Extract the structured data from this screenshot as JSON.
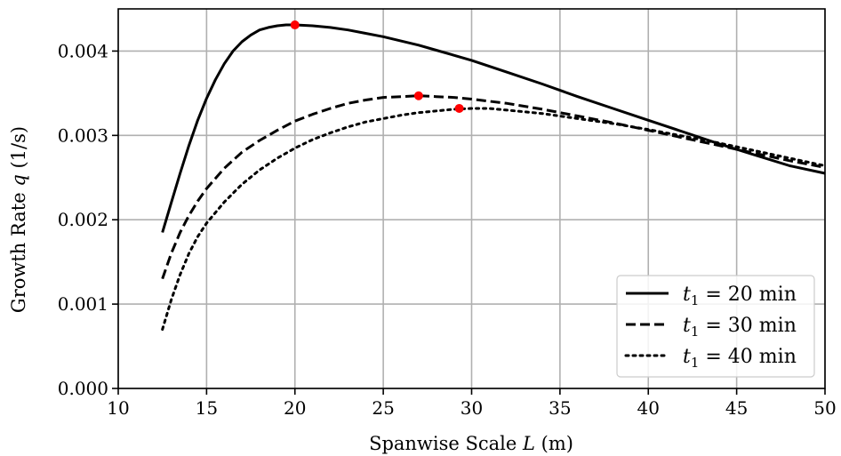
{
  "chart_data": {
    "type": "line",
    "xlabel": "Spanwise Scale L (m)",
    "xlabel_parts": {
      "prefix": "Spanwise Scale ",
      "var": "L",
      "suffix": " (m)"
    },
    "ylabel": "Growth Rate q (1/s)",
    "ylabel_parts": {
      "prefix": "Growth Rate ",
      "var": "q",
      "suffix": " (1/s)"
    },
    "xlim": [
      10,
      50
    ],
    "ylim": [
      0,
      0.0045
    ],
    "x_ticks": [
      10,
      15,
      20,
      25,
      30,
      35,
      40,
      45,
      50
    ],
    "x_tick_labels": [
      "10",
      "15",
      "20",
      "25",
      "30",
      "35",
      "40",
      "45",
      "50"
    ],
    "y_ticks": [
      0,
      0.001,
      0.002,
      0.003,
      0.004
    ],
    "y_tick_labels": [
      "0.000",
      "0.001",
      "0.002",
      "0.003",
      "0.004"
    ],
    "grid": true,
    "legend_position": "lower-right",
    "series": [
      {
        "name": "t1 = 20 min",
        "legend_parts": {
          "var": "t",
          "sub": "1",
          "rest": " = 20 min"
        },
        "style": "solid",
        "x": [
          12.5,
          13,
          13.5,
          14,
          14.5,
          15,
          15.5,
          16,
          16.5,
          17,
          17.5,
          18,
          18.5,
          19,
          19.5,
          20,
          21,
          22,
          23,
          24,
          25,
          26,
          27,
          28,
          29,
          30,
          32,
          34,
          36,
          38,
          40,
          42,
          44,
          46,
          48,
          50
        ],
        "values": [
          0.00185,
          0.0022,
          0.00255,
          0.00288,
          0.00318,
          0.00344,
          0.00366,
          0.00385,
          0.004,
          0.00411,
          0.00419,
          0.00425,
          0.00428,
          0.0043,
          0.00431,
          0.00431,
          0.0043,
          0.00428,
          0.00425,
          0.00421,
          0.00417,
          0.00412,
          0.00407,
          0.00401,
          0.00395,
          0.00389,
          0.00375,
          0.00361,
          0.00346,
          0.00332,
          0.00318,
          0.00304,
          0.0029,
          0.00277,
          0.00264,
          0.00255
        ]
      },
      {
        "name": "t1 = 30 min",
        "legend_parts": {
          "var": "t",
          "sub": "1",
          "rest": " = 30 min"
        },
        "style": "dashed",
        "x": [
          12.5,
          13,
          13.5,
          14,
          14.5,
          15,
          16,
          17,
          18,
          19,
          20,
          21,
          22,
          23,
          24,
          25,
          26,
          27,
          28,
          29,
          30,
          32,
          34,
          36,
          38,
          40,
          42,
          44,
          46,
          48,
          50
        ],
        "values": [
          0.0013,
          0.0016,
          0.00185,
          0.00205,
          0.00222,
          0.00237,
          0.00261,
          0.0028,
          0.00294,
          0.00306,
          0.00317,
          0.00325,
          0.00332,
          0.00338,
          0.00342,
          0.00345,
          0.00346,
          0.00347,
          0.00346,
          0.00345,
          0.00343,
          0.00338,
          0.00331,
          0.00323,
          0.00315,
          0.00306,
          0.00297,
          0.00288,
          0.00279,
          0.0027,
          0.00262
        ]
      },
      {
        "name": "t1 = 40 min",
        "legend_parts": {
          "var": "t",
          "sub": "1",
          "rest": " = 40 min"
        },
        "style": "dotted",
        "x": [
          12.5,
          13,
          13.5,
          14,
          14.5,
          15,
          16,
          17,
          18,
          19,
          20,
          21,
          22,
          23,
          24,
          25,
          26,
          27,
          28,
          29,
          30,
          31,
          32,
          34,
          36,
          38,
          40,
          42,
          44,
          46,
          48,
          50
        ],
        "values": [
          0.0007,
          0.00105,
          0.00135,
          0.0016,
          0.0018,
          0.00196,
          0.00221,
          0.00242,
          0.00259,
          0.00273,
          0.00285,
          0.00295,
          0.00303,
          0.0031,
          0.00316,
          0.0032,
          0.00324,
          0.00327,
          0.00329,
          0.00331,
          0.00332,
          0.00332,
          0.0033,
          0.00326,
          0.0032,
          0.00314,
          0.00307,
          0.00299,
          0.00291,
          0.00282,
          0.00273,
          0.00264
        ]
      }
    ],
    "markers": [
      {
        "x": 20.0,
        "y": 0.00431,
        "color": "#ff0000"
      },
      {
        "x": 27.0,
        "y": 0.00347,
        "color": "#ff0000"
      },
      {
        "x": 29.3,
        "y": 0.00332,
        "color": "#ff0000"
      }
    ]
  }
}
